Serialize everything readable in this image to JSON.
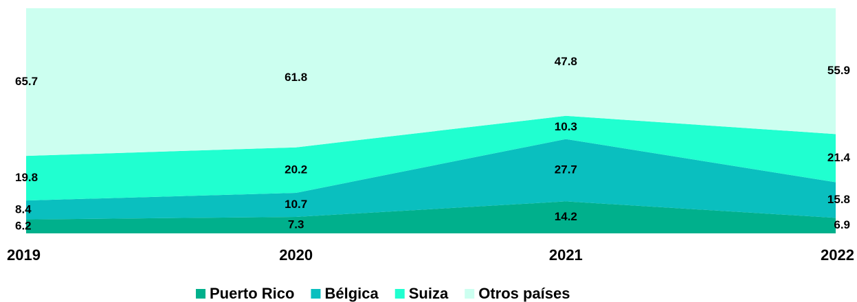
{
  "chart_data": {
    "type": "area",
    "stacked": true,
    "categories": [
      "2019",
      "2020",
      "2021",
      "2022"
    ],
    "ylim": [
      0,
      100
    ],
    "series": [
      {
        "name": "Puerto Rico",
        "color": "#00b08c",
        "values": [
          6.2,
          7.3,
          14.2,
          6.9
        ]
      },
      {
        "name": "Bélgica",
        "color": "#0abfbf",
        "values": [
          8.4,
          10.7,
          27.7,
          15.8
        ]
      },
      {
        "name": "Suiza",
        "color": "#20ffd0",
        "values": [
          19.8,
          20.2,
          10.3,
          21.4
        ]
      },
      {
        "name": "Otros países",
        "color": "#ccfff0",
        "values": [
          65.7,
          61.8,
          47.8,
          55.9
        ]
      }
    ]
  }
}
